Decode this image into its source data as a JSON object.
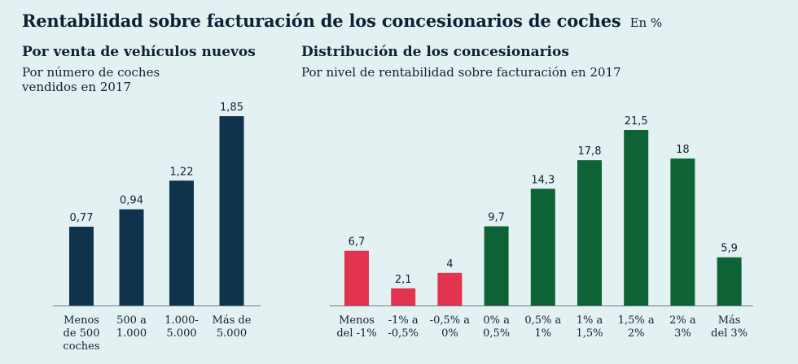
{
  "header": {
    "title": "Rentabilidad sobre facturación de los concesionarios de coches",
    "unit": "En %"
  },
  "chart_data": [
    {
      "type": "bar",
      "title": "Por venta de vehículos nuevos",
      "subtitle": "Por número de coches vendidos en 2017",
      "categories": [
        [
          "Menos",
          "de 500",
          "coches"
        ],
        [
          "500 a",
          "1.000"
        ],
        [
          "1.000-",
          "5.000"
        ],
        [
          "Más de",
          "5.000"
        ]
      ],
      "values": [
        0.77,
        0.94,
        1.22,
        1.85
      ],
      "labels": [
        "0,77",
        "0,94",
        "1,22",
        "1,85"
      ],
      "colors": [
        "#0f334d",
        "#0f334d",
        "#0f334d",
        "#0f334d"
      ],
      "ylim": [
        0,
        1.85
      ]
    },
    {
      "type": "bar",
      "title": "Distribución de los concesionarios",
      "subtitle": "Por nivel de rentabilidad sobre facturación en 2017",
      "categories": [
        [
          "Menos",
          "del -1%"
        ],
        [
          "-1% a",
          "-0,5%"
        ],
        [
          "-0,5% a",
          "0%"
        ],
        [
          "0% a",
          "0,5%"
        ],
        [
          "0,5% a",
          "1%"
        ],
        [
          "1% a",
          "1,5%"
        ],
        [
          "1,5% a",
          "2%"
        ],
        [
          "2% a",
          "3%"
        ],
        [
          "Más",
          "del 3%"
        ]
      ],
      "values": [
        6.7,
        2.1,
        4,
        9.7,
        14.3,
        17.8,
        21.5,
        18,
        5.9
      ],
      "labels": [
        "6,7",
        "2,1",
        "4",
        "9,7",
        "14,3",
        "17,8",
        "21,5",
        "18",
        "5,9"
      ],
      "colors": [
        "#e3344f",
        "#e3344f",
        "#e3344f",
        "#0d6236",
        "#0d6236",
        "#0d6236",
        "#0d6236",
        "#0d6236",
        "#0d6236"
      ],
      "ylim": [
        0,
        21.5
      ]
    }
  ]
}
